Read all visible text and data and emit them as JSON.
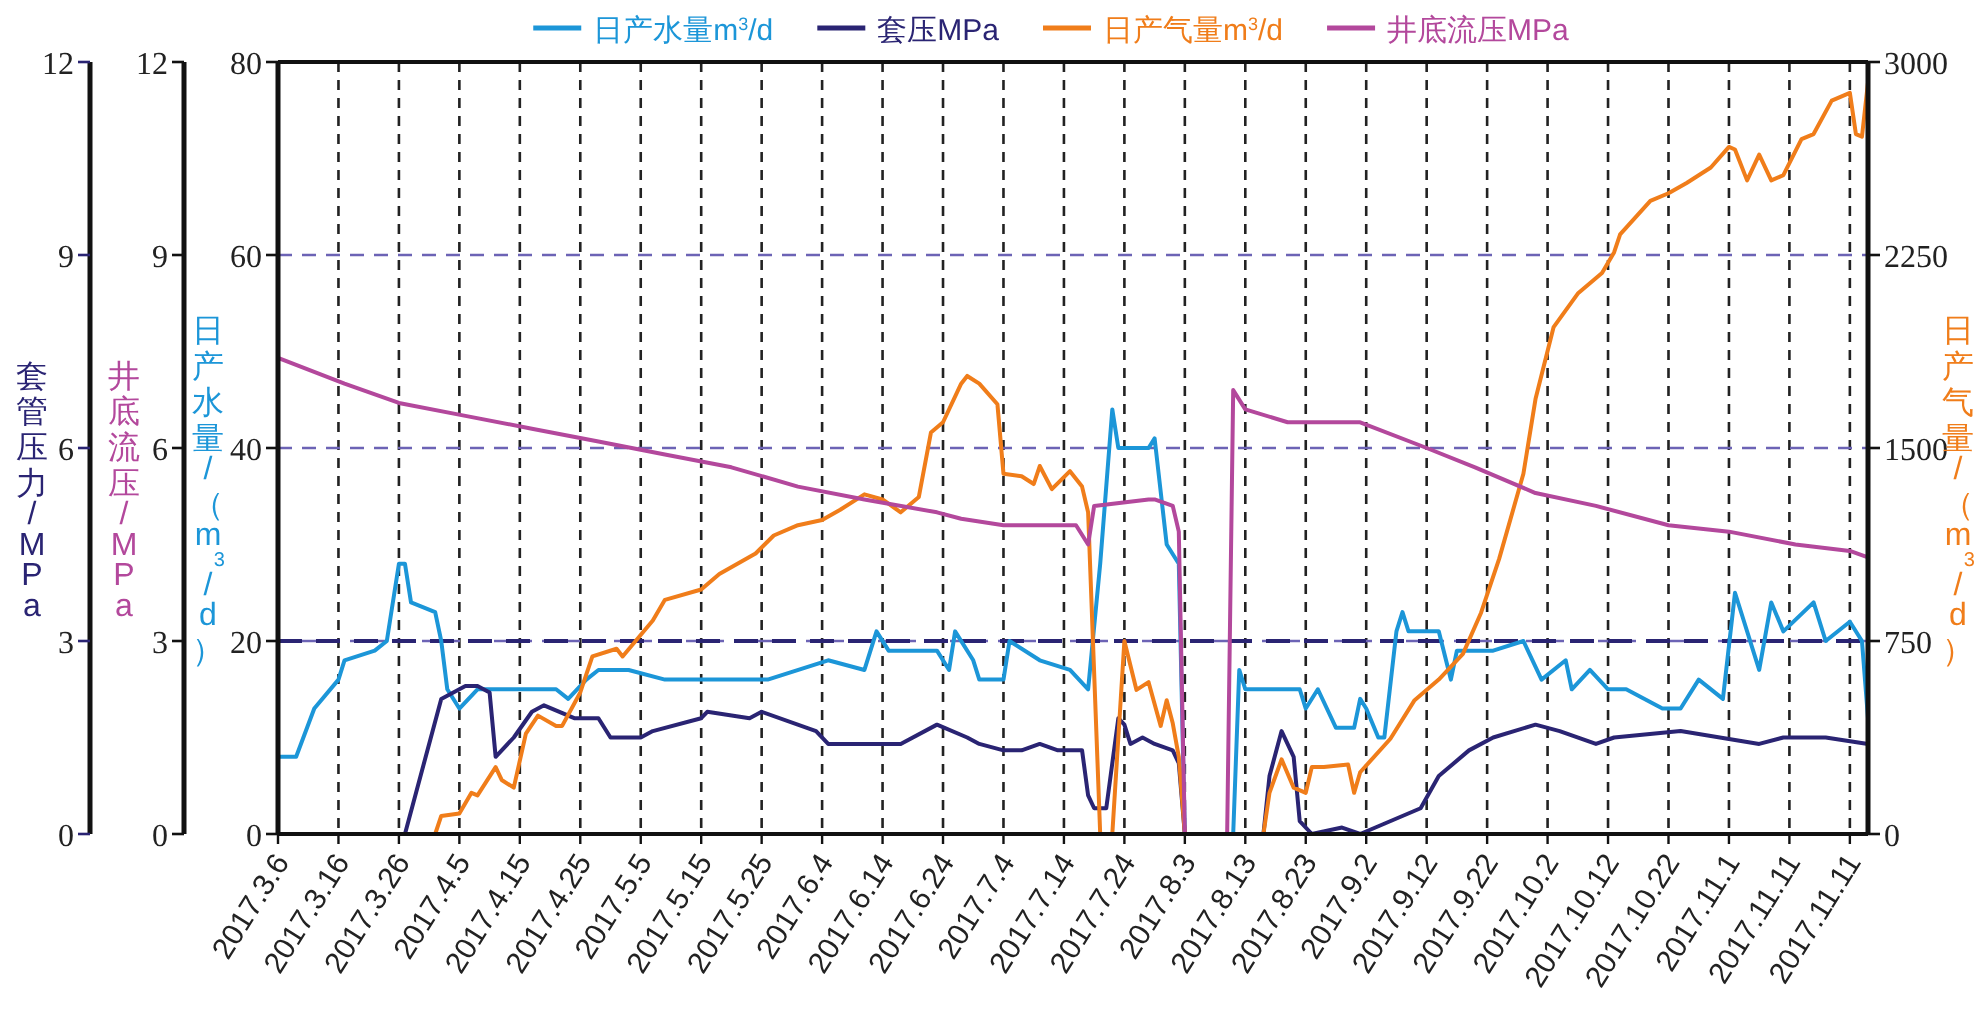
{
  "chart_data": {
    "type": "line",
    "legend": "top",
    "grid": true,
    "ylabel": "日产水量/（m$^{3}$/d）",
    "y2label": "日产气量/（m$^{3}$/d）",
    "y3label": "套管压力/MPa",
    "annotations": [
      "井底流压/MPa",
      "0",
      "3",
      "6",
      "9",
      "12"
    ],
    "xlim": [
      "2017-03-06",
      "2017-11-24"
    ],
    "xticks": [
      {
        "value": "2017-03-06",
        "label": "2017.3.6"
      },
      {
        "value": "2017-03-16",
        "label": "2017.3.16"
      },
      {
        "value": "2017-03-26",
        "label": "2017.3.26"
      },
      {
        "value": "2017-04-05",
        "label": "2017.4.5"
      },
      {
        "value": "2017-04-15",
        "label": "2017.4.15"
      },
      {
        "value": "2017-04-25",
        "label": "2017.4.25"
      },
      {
        "value": "2017-05-05",
        "label": "2017.5.5"
      },
      {
        "value": "2017-05-15",
        "label": "2017.5.15"
      },
      {
        "value": "2017-05-25",
        "label": "2017.5.25"
      },
      {
        "value": "2017-06-04",
        "label": "2017.6.4"
      },
      {
        "value": "2017-06-14",
        "label": "2017.6.14"
      },
      {
        "value": "2017-06-24",
        "label": "2017.6.24"
      },
      {
        "value": "2017-07-04",
        "label": "2017.7.4"
      },
      {
        "value": "2017-07-14",
        "label": "2017.7.14"
      },
      {
        "value": "2017-07-24",
        "label": "2017.7.24"
      },
      {
        "value": "2017-08-03",
        "label": "2017.8.3"
      },
      {
        "value": "2017-08-13",
        "label": "2017.8.13"
      },
      {
        "value": "2017-08-23",
        "label": "2017.8.23"
      },
      {
        "value": "2017-09-02",
        "label": "2017.9.2"
      },
      {
        "value": "2017-09-12",
        "label": "2017.9.12"
      },
      {
        "value": "2017-09-22",
        "label": "2017.9.22"
      },
      {
        "value": "2017-10-02",
        "label": "2017.10.2"
      },
      {
        "value": "2017-10-12",
        "label": "2017.10.12"
      },
      {
        "value": "2017-10-22",
        "label": "2017.10.22"
      },
      {
        "value": "2017-11-01",
        "label": "2017.11.1"
      },
      {
        "value": "2017-11-11",
        "label": "2017.11.11"
      },
      {
        "value": "2017-11-21",
        "label": "2017.11.11"
      }
    ],
    "ylim": [
      0,
      80
    ],
    "yticks": [
      0,
      20,
      40,
      60,
      80
    ],
    "y2lim": [
      0,
      3000
    ],
    "y2ticks": [
      0,
      750,
      1500,
      2250,
      3000
    ],
    "y3lim": [
      0,
      12
    ],
    "y3ticks": [
      0,
      3,
      6,
      9,
      12
    ],
    "ref_lines": [
      {
        "axis": "y",
        "value": 20,
        "color": "#2a2473",
        "line_style": "dashed"
      }
    ],
    "series": [
      {
        "name": "日产水量m$^{3}$/d",
        "color": "#1c96d8",
        "axis": "y",
        "x": [
          "2017-03-06",
          "2017-03-09",
          "2017-03-12",
          "2017-03-16",
          "2017-03-17",
          "2017-03-22",
          "2017-03-24",
          "2017-03-26",
          "2017-03-27",
          "2017-03-28",
          "2017-04-01",
          "2017-04-02",
          "2017-04-03",
          "2017-04-05",
          "2017-04-08",
          "2017-04-17",
          "2017-04-21",
          "2017-04-23",
          "2017-04-26",
          "2017-04-28",
          "2017-05-01",
          "2017-05-03",
          "2017-05-09",
          "2017-05-26",
          "2017-06-05",
          "2017-06-11",
          "2017-06-13",
          "2017-06-15",
          "2017-06-23",
          "2017-06-25",
          "2017-06-26",
          "2017-06-29",
          "2017-06-30",
          "2017-07-04",
          "2017-07-05",
          "2017-07-10",
          "2017-07-15",
          "2017-07-18",
          "2017-07-20",
          "2017-07-22",
          "2017-07-23",
          "2017-07-28",
          "2017-07-29",
          "2017-07-31",
          "2017-08-02",
          "2017-08-03",
          "2017-08-11",
          "2017-08-12",
          "2017-08-13",
          "2017-08-18",
          "2017-08-22",
          "2017-08-23",
          "2017-08-25",
          "2017-08-28",
          "2017-08-31",
          "2017-09-01",
          "2017-09-02",
          "2017-09-04",
          "2017-09-05",
          "2017-09-07",
          "2017-09-08",
          "2017-09-09",
          "2017-09-14",
          "2017-09-16",
          "2017-09-17",
          "2017-09-23",
          "2017-09-28",
          "2017-10-01",
          "2017-10-05",
          "2017-10-06",
          "2017-10-09",
          "2017-10-12",
          "2017-10-15",
          "2017-10-21",
          "2017-10-24",
          "2017-10-27",
          "2017-10-31",
          "2017-11-02",
          "2017-11-06",
          "2017-11-08",
          "2017-11-10",
          "2017-11-15",
          "2017-11-17",
          "2017-11-21",
          "2017-11-23",
          "2017-11-24"
        ],
        "values": [
          8,
          8,
          13,
          16,
          18,
          19,
          20,
          28,
          28,
          24,
          23,
          20,
          15,
          13,
          15,
          15,
          15,
          14,
          16,
          17,
          17,
          17,
          16,
          16,
          18,
          17,
          21,
          19,
          19,
          17,
          21,
          18,
          16,
          16,
          20,
          18,
          17,
          15,
          28,
          44,
          40,
          40,
          41,
          30,
          28,
          0,
          0,
          17,
          15,
          15,
          15,
          13,
          15,
          11,
          11,
          14,
          13,
          10,
          10,
          21,
          23,
          21,
          21,
          16,
          19,
          19,
          20,
          16,
          18,
          15,
          17,
          15,
          15,
          13,
          13,
          16,
          14,
          25,
          17,
          24,
          21,
          24,
          20,
          22,
          20,
          12
        ]
      },
      {
        "name": "套压MPa",
        "color": "#2a2473",
        "axis": "y3",
        "x": [
          "2017-03-27",
          "2017-04-02",
          "2017-04-06",
          "2017-04-08",
          "2017-04-10",
          "2017-04-11",
          "2017-04-14",
          "2017-04-17",
          "2017-04-19",
          "2017-04-24",
          "2017-04-28",
          "2017-04-30",
          "2017-05-05",
          "2017-05-07",
          "2017-05-15",
          "2017-05-16",
          "2017-05-23",
          "2017-05-25",
          "2017-06-03",
          "2017-06-05",
          "2017-06-17",
          "2017-06-23",
          "2017-06-28",
          "2017-06-30",
          "2017-07-04",
          "2017-07-07",
          "2017-07-10",
          "2017-07-13",
          "2017-07-17",
          "2017-07-18",
          "2017-07-19",
          "2017-07-21",
          "2017-07-23",
          "2017-07-24",
          "2017-07-25",
          "2017-07-27",
          "2017-07-29",
          "2017-08-01",
          "2017-08-02",
          "2017-08-03",
          "2017-08-16",
          "2017-08-17",
          "2017-08-19",
          "2017-08-21",
          "2017-08-22",
          "2017-08-24",
          "2017-08-29",
          "2017-09-01",
          "2017-09-11",
          "2017-09-14",
          "2017-09-19",
          "2017-09-23",
          "2017-09-30",
          "2017-10-04",
          "2017-10-10",
          "2017-10-13",
          "2017-10-24",
          "2017-11-06",
          "2017-11-10",
          "2017-11-17",
          "2017-11-24"
        ],
        "values": [
          0,
          2.1,
          2.3,
          2.3,
          2.2,
          1.2,
          1.5,
          1.9,
          2.0,
          1.8,
          1.8,
          1.5,
          1.5,
          1.6,
          1.8,
          1.9,
          1.8,
          1.9,
          1.6,
          1.4,
          1.4,
          1.7,
          1.5,
          1.4,
          1.3,
          1.3,
          1.4,
          1.3,
          1.3,
          0.6,
          0.4,
          0.4,
          1.8,
          1.7,
          1.4,
          1.5,
          1.4,
          1.3,
          1.1,
          0,
          0,
          0.9,
          1.6,
          1.2,
          0.2,
          0,
          0.1,
          0,
          0.4,
          0.9,
          1.3,
          1.5,
          1.7,
          1.6,
          1.4,
          1.5,
          1.6,
          1.4,
          1.5,
          1.5,
          1.4
        ]
      },
      {
        "name": "日产气量m$^{3}$/d",
        "color": "#f07d1a",
        "axis": "y2",
        "x": [
          "2017-04-01",
          "2017-04-02",
          "2017-04-05",
          "2017-04-07",
          "2017-04-08",
          "2017-04-11",
          "2017-04-12",
          "2017-04-14",
          "2017-04-16",
          "2017-04-18",
          "2017-04-21",
          "2017-04-22",
          "2017-04-25",
          "2017-04-27",
          "2017-05-01",
          "2017-05-02",
          "2017-05-07",
          "2017-05-09",
          "2017-05-15",
          "2017-05-18",
          "2017-05-24",
          "2017-05-27",
          "2017-05-31",
          "2017-06-04",
          "2017-06-07",
          "2017-06-11",
          "2017-06-14",
          "2017-06-17",
          "2017-06-20",
          "2017-06-22",
          "2017-06-24",
          "2017-06-27",
          "2017-06-28",
          "2017-06-30",
          "2017-07-03",
          "2017-07-04",
          "2017-07-07",
          "2017-07-09",
          "2017-07-10",
          "2017-07-12",
          "2017-07-15",
          "2017-07-17",
          "2017-07-18",
          "2017-07-20",
          "2017-07-22",
          "2017-07-24",
          "2017-07-26",
          "2017-07-28",
          "2017-07-30",
          "2017-07-31",
          "2017-08-01",
          "2017-08-02",
          "2017-08-03",
          "2017-08-16",
          "2017-08-17",
          "2017-08-19",
          "2017-08-21",
          "2017-08-23",
          "2017-08-24",
          "2017-08-26",
          "2017-08-30",
          "2017-08-31",
          "2017-09-01",
          "2017-09-06",
          "2017-09-10",
          "2017-09-14",
          "2017-09-18",
          "2017-09-21",
          "2017-09-24",
          "2017-09-28",
          "2017-09-30",
          "2017-10-03",
          "2017-10-07",
          "2017-10-11",
          "2017-10-13",
          "2017-10-14",
          "2017-10-19",
          "2017-10-22",
          "2017-10-25",
          "2017-10-29",
          "2017-11-01",
          "2017-11-02",
          "2017-11-04",
          "2017-11-06",
          "2017-11-08",
          "2017-11-10",
          "2017-11-13",
          "2017-11-15",
          "2017-11-18",
          "2017-11-21",
          "2017-11-22",
          "2017-11-23",
          "2017-11-24"
        ],
        "values": [
          0,
          70,
          80,
          160,
          150,
          260,
          210,
          180,
          390,
          460,
          420,
          420,
          550,
          690,
          720,
          690,
          830,
          910,
          950,
          1010,
          1090,
          1160,
          1200,
          1220,
          1260,
          1320,
          1300,
          1250,
          1310,
          1560,
          1600,
          1750,
          1780,
          1750,
          1670,
          1400,
          1390,
          1360,
          1430,
          1340,
          1410,
          1350,
          1250,
          0,
          0,
          750,
          560,
          590,
          420,
          520,
          430,
          300,
          0,
          0,
          160,
          290,
          180,
          160,
          260,
          260,
          270,
          160,
          240,
          370,
          520,
          600,
          700,
          860,
          1070,
          1400,
          1690,
          1970,
          2100,
          2180,
          2260,
          2330,
          2460,
          2490,
          2530,
          2590,
          2670,
          2660,
          2540,
          2640,
          2540,
          2560,
          2700,
          2720,
          2850,
          2880,
          2720,
          2710,
          2920
        ]
      },
      {
        "name": "井底流压MPa",
        "color": "#b3489c",
        "axis": "y3",
        "x": [
          "2017-03-06",
          "2017-03-17",
          "2017-03-26",
          "2017-04-06",
          "2017-04-17",
          "2017-04-28",
          "2017-05-09",
          "2017-05-20",
          "2017-05-31",
          "2017-06-11",
          "2017-06-23",
          "2017-06-27",
          "2017-07-04",
          "2017-07-13",
          "2017-07-16",
          "2017-07-18",
          "2017-07-19",
          "2017-07-28",
          "2017-07-29",
          "2017-08-01",
          "2017-08-02",
          "2017-08-03",
          "2017-08-10",
          "2017-08-11",
          "2017-08-13",
          "2017-08-20",
          "2017-09-01",
          "2017-09-12",
          "2017-09-20",
          "2017-09-30",
          "2017-10-10",
          "2017-10-22",
          "2017-11-01",
          "2017-11-12",
          "2017-11-21",
          "2017-11-24"
        ],
        "values": [
          7.4,
          7.0,
          6.7,
          6.5,
          6.3,
          6.1,
          5.9,
          5.7,
          5.4,
          5.2,
          5.0,
          4.9,
          4.8,
          4.8,
          4.8,
          4.5,
          5.1,
          5.2,
          5.2,
          5.1,
          4.7,
          0,
          0,
          6.9,
          6.6,
          6.4,
          6.4,
          6.0,
          5.7,
          5.3,
          5.1,
          4.8,
          4.7,
          4.5,
          4.4,
          4.3
        ]
      }
    ]
  }
}
